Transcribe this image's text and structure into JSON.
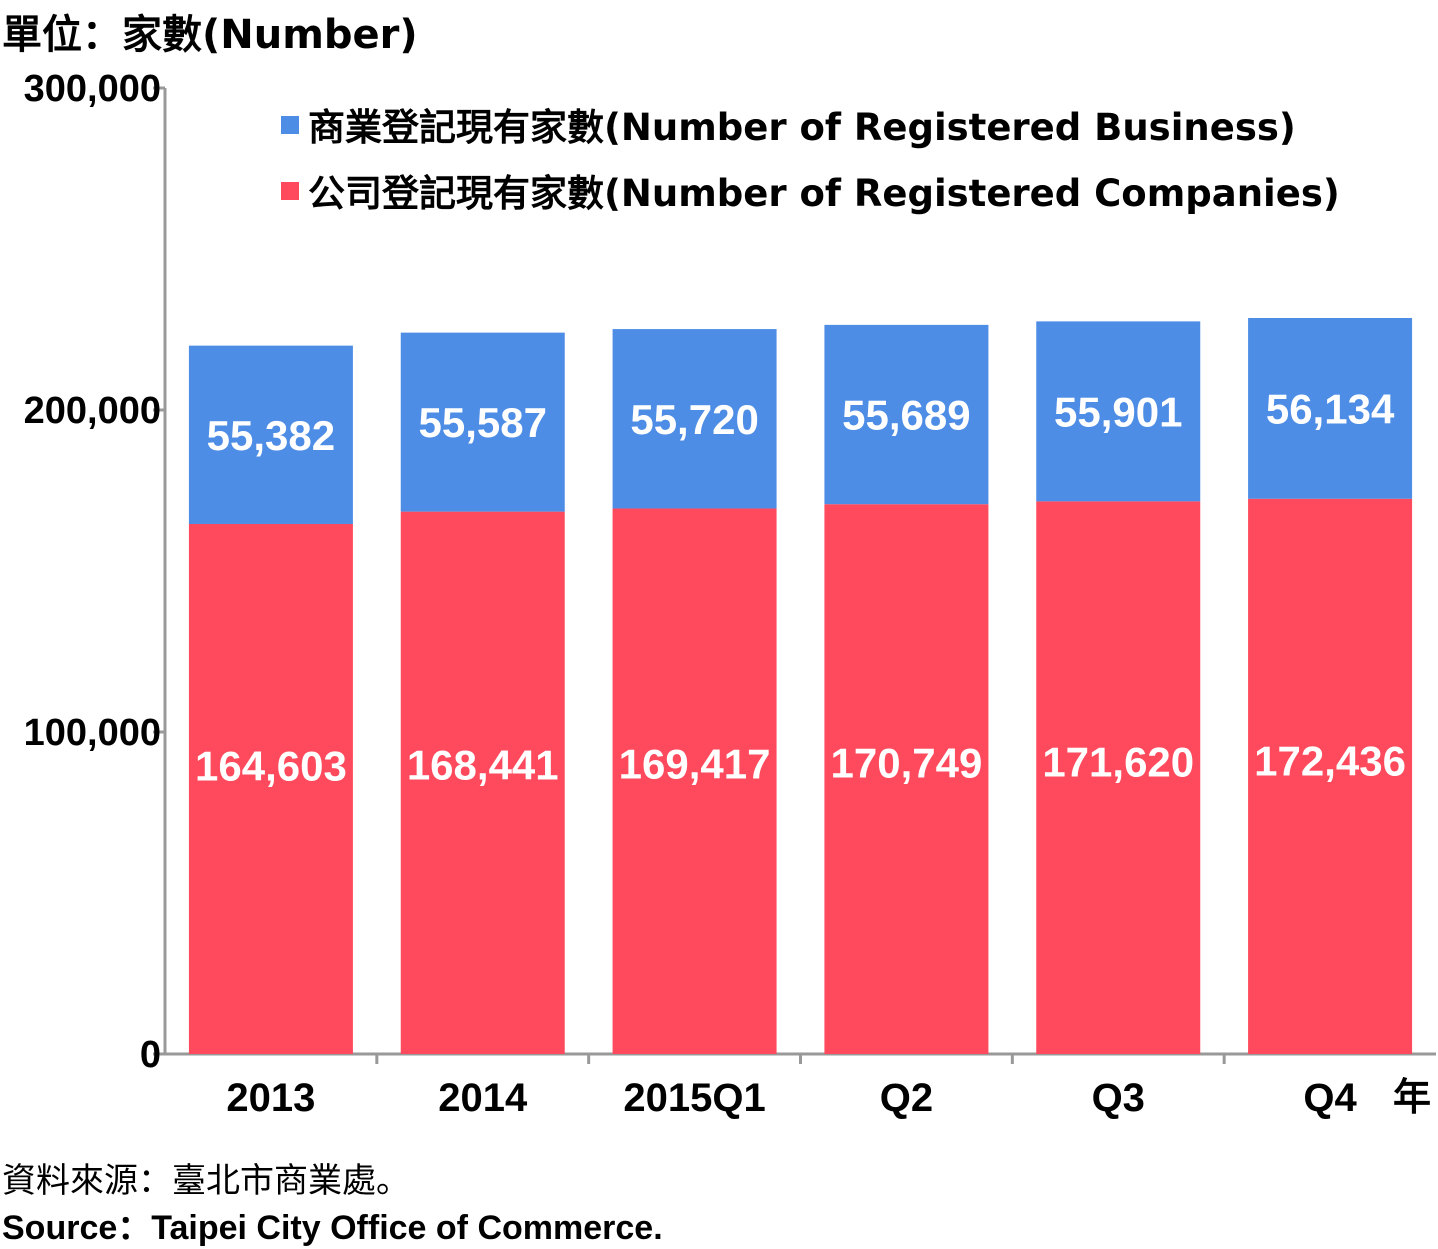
{
  "unit_label": "單位：家數(Number)",
  "x_suffix": "年",
  "source_zh": "資料來源：臺北市商業處。",
  "source_en": "Source：Taipei City Office of Commerce.",
  "colors": {
    "business": "#4e8de6",
    "companies": "#fe4a5c",
    "axis": "#999999"
  },
  "chart_data": {
    "type": "bar",
    "stacked": true,
    "categories": [
      "2013",
      "2014",
      "2015Q1",
      "Q2",
      "Q3",
      "Q4"
    ],
    "series": [
      {
        "name": "公司登記現有家數(Number of Registered Companies)",
        "values": [
          164603,
          168441,
          169417,
          170749,
          171620,
          172436
        ]
      },
      {
        "name": "商業登記現有家數(Number of Registered Business)",
        "values": [
          55382,
          55587,
          55720,
          55689,
          55901,
          56134
        ]
      }
    ],
    "data_labels": {
      "companies": [
        "164,603",
        "168,441",
        "169,417",
        "170,749",
        "171,620",
        "172,436"
      ],
      "business": [
        "55,382",
        "55,587",
        "55,720",
        "55,689",
        "55,901",
        "56,134"
      ]
    },
    "ylim": [
      0,
      300000
    ],
    "yticks": [
      0,
      100000,
      200000,
      300000
    ],
    "ytick_labels": [
      "0",
      "100,000",
      "200,000",
      "300,000"
    ],
    "legend_position": "top",
    "legend": [
      "商業登記現有家數(Number of Registered Business)",
      "公司登記現有家數(Number of Registered Companies)"
    ],
    "grid": false
  }
}
